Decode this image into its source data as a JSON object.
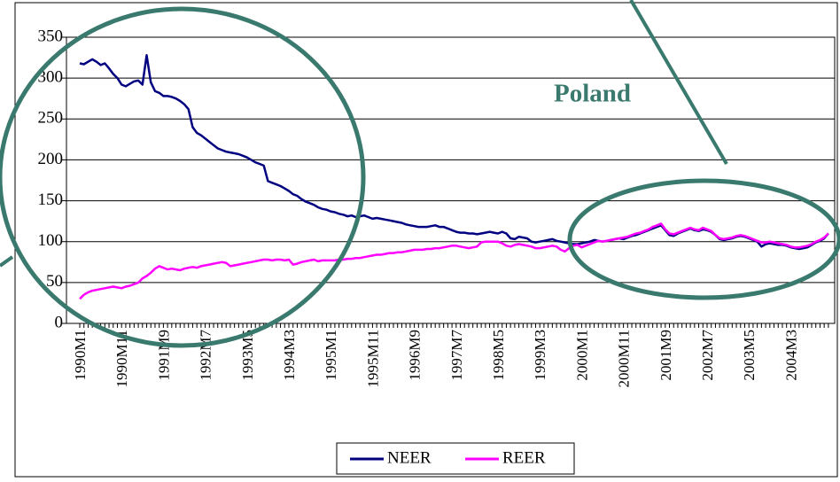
{
  "chart_data": {
    "type": "line",
    "annotation": "Poland",
    "categories": [
      "1990M1",
      null,
      null,
      null,
      null,
      null,
      null,
      null,
      null,
      null,
      "1990M11",
      null,
      null,
      null,
      null,
      null,
      null,
      null,
      null,
      null,
      "1991M9",
      null,
      null,
      null,
      null,
      null,
      null,
      null,
      null,
      null,
      "1992M7",
      null,
      null,
      null,
      null,
      null,
      null,
      null,
      null,
      null,
      "1993M5",
      null,
      null,
      null,
      null,
      null,
      null,
      null,
      null,
      null,
      "1994M3",
      null,
      null,
      null,
      null,
      null,
      null,
      null,
      null,
      null,
      "1995M1",
      null,
      null,
      null,
      null,
      null,
      null,
      null,
      null,
      null,
      "1995M11",
      null,
      null,
      null,
      null,
      null,
      null,
      null,
      null,
      null,
      "1996M9",
      null,
      null,
      null,
      null,
      null,
      null,
      null,
      null,
      null,
      "1997M7",
      null,
      null,
      null,
      null,
      null,
      null,
      null,
      null,
      null,
      "1998M5",
      null,
      null,
      null,
      null,
      null,
      null,
      null,
      null,
      null,
      "1999M3",
      null,
      null,
      null,
      null,
      null,
      null,
      null,
      null,
      null,
      "2000M1",
      null,
      null,
      null,
      null,
      null,
      null,
      null,
      null,
      null,
      "2000M11",
      null,
      null,
      null,
      null,
      null,
      null,
      null,
      null,
      null,
      "2001M9",
      null,
      null,
      null,
      null,
      null,
      null,
      null,
      null,
      null,
      "2002M7",
      null,
      null,
      null,
      null,
      null,
      null,
      null,
      null,
      null,
      "2003M5",
      null,
      null,
      null,
      null,
      null,
      null,
      null,
      null,
      null,
      "2004M3",
      null,
      null,
      null,
      null,
      null,
      null,
      null,
      null,
      null
    ],
    "series": [
      {
        "name": "NEER",
        "color": "#000080",
        "values": [
          318,
          317,
          320,
          323,
          320,
          316,
          318,
          312,
          305,
          300,
          292,
          290,
          293,
          296,
          297,
          292,
          328,
          295,
          284,
          282,
          278,
          278,
          277,
          275,
          272,
          268,
          262,
          240,
          233,
          230,
          226,
          222,
          218,
          214,
          212,
          210,
          209,
          208,
          207,
          205,
          203,
          200,
          197,
          195,
          193,
          174,
          172,
          170,
          168,
          165,
          162,
          158,
          156,
          152,
          149,
          147,
          145,
          142,
          140,
          139,
          137,
          136,
          134,
          133,
          131,
          132,
          130,
          131,
          132,
          130,
          128,
          129,
          128,
          127,
          126,
          125,
          124,
          123,
          121,
          120,
          119,
          118,
          118,
          118,
          119,
          120,
          118,
          118,
          116,
          114,
          112,
          111,
          111,
          110,
          110,
          109,
          110,
          111,
          112,
          111,
          110,
          112,
          110,
          104,
          103,
          106,
          105,
          104,
          100,
          99,
          100,
          101,
          102,
          103,
          101,
          100,
          99,
          98,
          97,
          97,
          98,
          99,
          100,
          102,
          101,
          100,
          101,
          102,
          103,
          104,
          103,
          105,
          107,
          108,
          110,
          112,
          114,
          116,
          118,
          120,
          114,
          108,
          107,
          110,
          112,
          114,
          116,
          114,
          113,
          115,
          114,
          112,
          108,
          103,
          102,
          103,
          104,
          106,
          107,
          106,
          104,
          102,
          100,
          94,
          97,
          98,
          97,
          96,
          96,
          95,
          93,
          92,
          91,
          92,
          93,
          96,
          99,
          101,
          104,
          110
        ]
      },
      {
        "name": "REER",
        "color": "#ff00ff",
        "values": [
          30,
          35,
          38,
          40,
          41,
          42,
          43,
          44,
          45,
          44,
          43,
          45,
          46,
          48,
          50,
          55,
          58,
          62,
          67,
          70,
          68,
          66,
          67,
          66,
          65,
          67,
          68,
          69,
          68,
          70,
          71,
          72,
          73,
          74,
          75,
          74,
          70,
          71,
          72,
          73,
          74,
          75,
          76,
          77,
          78,
          78,
          77,
          78,
          78,
          77,
          78,
          72,
          73,
          75,
          76,
          77,
          78,
          76,
          77,
          77,
          77,
          77,
          78,
          78,
          79,
          79,
          80,
          80,
          81,
          82,
          83,
          84,
          84,
          85,
          86,
          86,
          87,
          87,
          88,
          89,
          90,
          90,
          90,
          91,
          91,
          92,
          92,
          93,
          94,
          95,
          95,
          94,
          93,
          92,
          93,
          94,
          99,
          100,
          100,
          100,
          100,
          98,
          95,
          94,
          96,
          97,
          96,
          95,
          94,
          92,
          92,
          93,
          94,
          95,
          94,
          90,
          88,
          92,
          95,
          96,
          93,
          95,
          97,
          99,
          101,
          100,
          101,
          102,
          103,
          104,
          105,
          106,
          108,
          110,
          111,
          113,
          115,
          118,
          120,
          122,
          115,
          110,
          109,
          111,
          113,
          115,
          117,
          115,
          114,
          117,
          115,
          113,
          108,
          104,
          103,
          104,
          105,
          107,
          108,
          107,
          105,
          103,
          101,
          99,
          99,
          100,
          99,
          98,
          97,
          96,
          94,
          93,
          93,
          94,
          95,
          97,
          100,
          102,
          105,
          110
        ]
      }
    ],
    "ylim": [
      0,
      350
    ],
    "yticks": [
      0,
      50,
      100,
      150,
      200,
      250,
      300,
      350
    ],
    "grid": true,
    "legend": "bottom"
  }
}
